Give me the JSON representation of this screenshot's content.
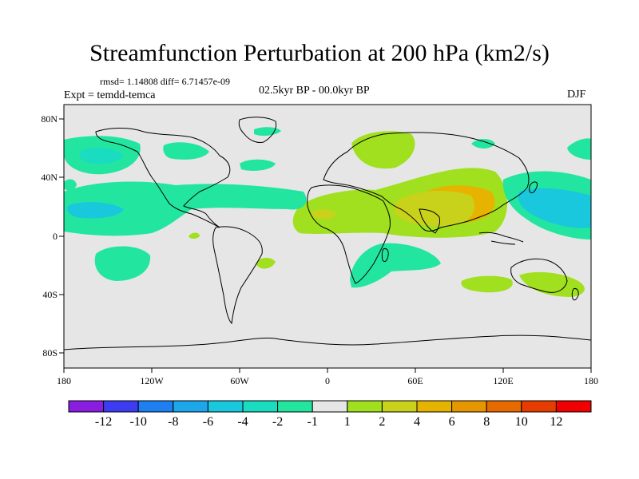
{
  "title": "Streamfunction Perturbation at 200 hPa (km2/s)",
  "stats_text": "rmsd= 1.14808 diff= 6.71457e-09",
  "experiment_label": "Expt = temdd-temca",
  "period_label": "02.5kyr BP - 00.0kyr BP",
  "season_label": "DJF",
  "lat_ticks": [
    "80N",
    "40N",
    "0",
    "40S",
    "80S"
  ],
  "lon_ticks": [
    "180",
    "120W",
    "60W",
    "0",
    "60E",
    "120E",
    "180"
  ],
  "colorbar": {
    "labels": [
      "-12",
      "-10",
      "-8",
      "-6",
      "-4",
      "-2",
      "-1",
      "1",
      "2",
      "4",
      "6",
      "8",
      "10",
      "12"
    ],
    "colors": [
      "#8a1ee0",
      "#3c3cf0",
      "#1e7ff0",
      "#1ea6ea",
      "#19c8dc",
      "#19dcc0",
      "#22e6a0",
      "#e6e6e6",
      "#a0e01e",
      "#c8d21a",
      "#e6b400",
      "#e69600",
      "#e66a00",
      "#e63c00",
      "#f00000"
    ]
  },
  "colors": {
    "background": "#e6e6e6",
    "land_outline": "#000000"
  }
}
